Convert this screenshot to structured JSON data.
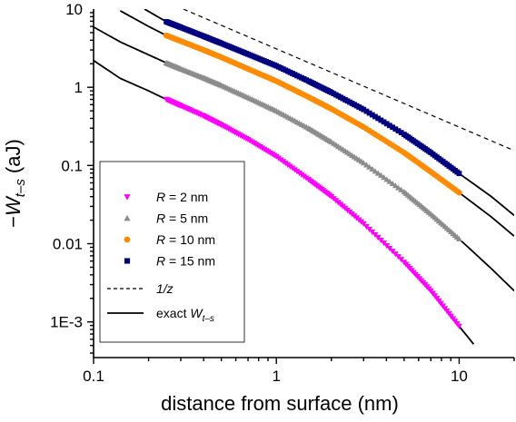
{
  "chart_data": {
    "type": "line",
    "x_scale": "log",
    "y_scale": "log",
    "xlim": [
      0.1,
      20
    ],
    "ylim": [
      0.00035,
      10
    ],
    "xticks": [
      0.1,
      1,
      10
    ],
    "xtick_labels": [
      "0.1",
      "1",
      "10"
    ],
    "yticks": [
      10,
      1,
      0.1,
      0.01,
      0.001
    ],
    "ytick_labels": [
      "10",
      "1",
      "0.1",
      "0.01",
      "1E-3"
    ],
    "xlabel": "distance from surface (nm)",
    "ylabel": {
      "prefix": "−",
      "var": "W",
      "sub": "t–s",
      "unit": " (aJ)"
    },
    "legend_position": "bottom-left",
    "marker_series": [
      {
        "R": 2,
        "label_var": "R",
        "label_rest": " = 2 nm",
        "color": "#ff00ff",
        "marker": "triangle-down",
        "x": [
          0.25,
          0.3,
          0.4,
          0.5,
          0.7,
          1,
          1.5,
          2,
          3,
          5,
          7,
          10
        ],
        "y": [
          0.7,
          0.58,
          0.43,
          0.33,
          0.215,
          0.13,
          0.066,
          0.04,
          0.018,
          0.0058,
          0.0025,
          0.00088
        ]
      },
      {
        "R": 5,
        "label_var": "R",
        "label_rest": " = 5 nm",
        "color": "#8c8c8c",
        "marker": "triangle-up",
        "x": [
          0.25,
          0.3,
          0.4,
          0.5,
          0.7,
          1,
          1.5,
          2,
          3,
          5,
          7,
          10
        ],
        "y": [
          2.05,
          1.72,
          1.32,
          1.06,
          0.74,
          0.5,
          0.3,
          0.2,
          0.108,
          0.046,
          0.024,
          0.0115
        ]
      },
      {
        "R": 10,
        "label_var": "R",
        "label_rest": " = 10 nm",
        "color": "#ff8c00",
        "marker": "circle",
        "x": [
          0.25,
          0.3,
          0.4,
          0.5,
          0.7,
          1,
          1.5,
          2,
          3,
          5,
          7,
          10
        ],
        "y": [
          4.6,
          3.9,
          3.0,
          2.42,
          1.72,
          1.2,
          0.75,
          0.53,
          0.31,
          0.146,
          0.083,
          0.045
        ]
      },
      {
        "R": 15,
        "label_var": "R",
        "label_rest": " = 15 nm",
        "color": "#00007f",
        "marker": "square",
        "x": [
          0.25,
          0.3,
          0.4,
          0.5,
          0.7,
          1,
          1.5,
          2,
          3,
          5,
          7,
          10
        ],
        "y": [
          6.9,
          5.85,
          4.5,
          3.65,
          2.65,
          1.88,
          1.2,
          0.86,
          0.52,
          0.25,
          0.146,
          0.079
        ]
      }
    ],
    "exact_curves": [
      {
        "x": [
          0.1,
          0.14,
          0.2,
          0.25,
          0.3,
          0.4,
          0.5,
          0.7,
          1,
          1.5,
          2,
          3,
          5,
          7,
          10,
          12
        ],
        "y": [
          2.2,
          1.3,
          0.9,
          0.7,
          0.58,
          0.43,
          0.33,
          0.215,
          0.13,
          0.066,
          0.04,
          0.018,
          0.0058,
          0.0025,
          0.00088,
          0.00052
        ]
      },
      {
        "x": [
          0.1,
          0.14,
          0.2,
          0.25,
          0.3,
          0.4,
          0.5,
          0.7,
          1,
          1.5,
          2,
          3,
          5,
          7,
          10,
          15,
          20
        ],
        "y": [
          5.9,
          3.8,
          2.6,
          2.05,
          1.72,
          1.32,
          1.06,
          0.74,
          0.5,
          0.3,
          0.2,
          0.108,
          0.046,
          0.024,
          0.0115,
          0.0048,
          0.0025
        ]
      },
      {
        "x": [
          0.14,
          0.2,
          0.25,
          0.3,
          0.4,
          0.5,
          0.7,
          1,
          1.5,
          2,
          3,
          5,
          7,
          10,
          15,
          20
        ],
        "y": [
          9.5,
          6.0,
          4.6,
          3.9,
          3.0,
          2.42,
          1.72,
          1.2,
          0.75,
          0.53,
          0.31,
          0.146,
          0.083,
          0.045,
          0.022,
          0.0125
        ]
      },
      {
        "x": [
          0.19,
          0.25,
          0.3,
          0.4,
          0.5,
          0.7,
          1,
          1.5,
          2,
          3,
          5,
          7,
          10,
          15,
          20
        ],
        "y": [
          10,
          6.9,
          5.85,
          4.5,
          3.65,
          2.65,
          1.88,
          1.2,
          0.86,
          0.52,
          0.25,
          0.146,
          0.079,
          0.04,
          0.023
        ]
      }
    ],
    "reference_line": {
      "label": "1/z",
      "x": [
        0.31,
        20
      ],
      "y": [
        10,
        0.155
      ]
    },
    "exact_legend": {
      "prefix": "exact ",
      "var": "W",
      "sub": "t–s"
    }
  }
}
